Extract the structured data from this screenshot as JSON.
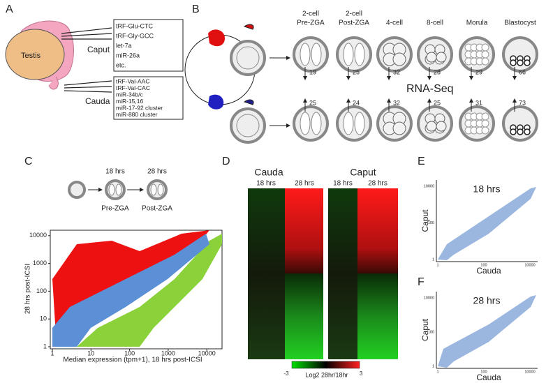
{
  "panels": [
    "A",
    "B",
    "C",
    "D",
    "E",
    "F"
  ],
  "panel_a": {
    "testis": "Testis",
    "caput": "Caput",
    "cauda": "Cauda",
    "caput_list": [
      "tRF-Glu-CTC",
      "tRF-Gly-GCC",
      "let-7a",
      "miR-26a",
      "etc."
    ],
    "cauda_list": [
      "tRF-Val-AAC",
      "tRF-Val-CAC",
      "miR-34b/c",
      "miR-15,16",
      "miR-17-92 cluster",
      "miR-880 cluster"
    ]
  },
  "panel_b": {
    "stages": [
      [
        "2-cell",
        "Pre-ZGA"
      ],
      [
        "2-cell",
        "Post-ZGA"
      ],
      [
        "4-cell"
      ],
      [
        "8-cell"
      ],
      [
        "Morula"
      ],
      [
        "Blastocyst"
      ]
    ],
    "top_counts": [
      19,
      25,
      32,
      28,
      29,
      66
    ],
    "bottom_counts": [
      25,
      24,
      32,
      25,
      31,
      73
    ],
    "method": "RNA-Seq"
  },
  "panel_c": {
    "times": [
      "18 hrs",
      "28 hrs"
    ],
    "stages": [
      "Pre-ZGA",
      "Post-ZGA"
    ],
    "ylabel": "28 hrs post-ICSI",
    "xlabel": "Median expression (tpm+1), 18 hrs post-ICSI",
    "xticks": [
      1,
      10,
      100,
      1000,
      10000
    ],
    "yticks": [
      1,
      10,
      100,
      1000,
      10000
    ]
  },
  "panel_d": {
    "groups": [
      "Cauda",
      "Caput"
    ],
    "times": [
      "18 hrs",
      "28 hrs"
    ],
    "colorbar_min": -3,
    "colorbar_max": 3,
    "colorbar_label": "Log2 28hr/18hr"
  },
  "panel_e": {
    "title": "18 hrs",
    "ylabel": "Caput",
    "xlabel": "Cauda",
    "xticks": [
      1,
      100,
      10000
    ],
    "yticks": [
      1,
      100,
      10000
    ]
  },
  "panel_f": {
    "title": "28 hrs",
    "ylabel": "Caput",
    "xlabel": "Cauda",
    "xticks": [
      1,
      100,
      10000
    ],
    "yticks": [
      1,
      100,
      10000
    ]
  }
}
